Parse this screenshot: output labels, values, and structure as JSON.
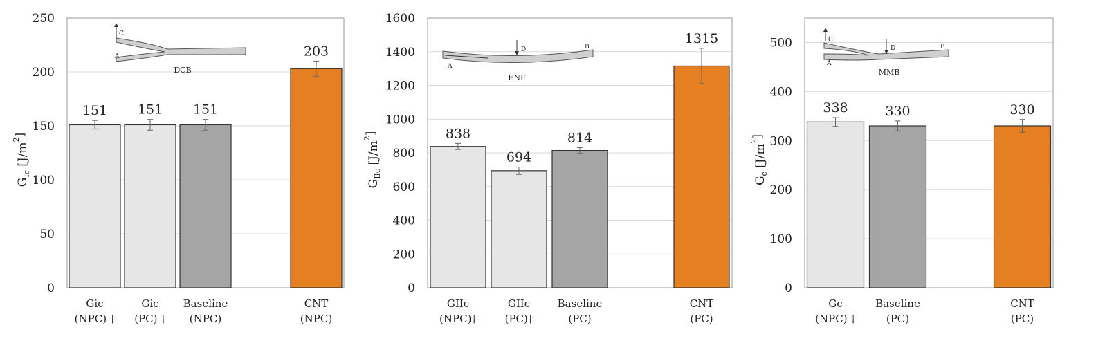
{
  "colors": {
    "light_bar": "#e6e6e6",
    "mid_bar": "#a5a5a5",
    "accent_bar": "#e67e22",
    "grid": "#d9d9d9",
    "axis": "#999999",
    "error_bar": "#666666"
  },
  "chart_data": [
    {
      "type": "bar",
      "ylabel_main": "G",
      "ylabel_sub": "Ic",
      "ylabel_unit": " [J/m",
      "ylabel_sup": "2",
      "ylabel_end": "]",
      "ylim": [
        0,
        250
      ],
      "yticks": [
        "0",
        "50",
        "100",
        "150",
        "200",
        "250"
      ],
      "grid": true,
      "inset": {
        "label": "DCB",
        "points": [
          "A",
          "C"
        ]
      },
      "bars": [
        {
          "category": [
            "Gic",
            "(NPC) †"
          ],
          "value": 151,
          "label": "151",
          "error": 4,
          "color": "light"
        },
        {
          "category": [
            "Gic",
            "(PC) †"
          ],
          "value": 151,
          "label": "151",
          "error": 5,
          "color": "light"
        },
        {
          "category": [
            "Baseline",
            "(NPC)"
          ],
          "value": 151,
          "label": "151",
          "error": 5,
          "color": "mid"
        },
        {
          "category": [
            "",
            ""
          ],
          "value": null,
          "label": "",
          "error": 0,
          "color": "none"
        },
        {
          "category": [
            "CNT",
            "(NPC)"
          ],
          "value": 203,
          "label": "203",
          "error": 7,
          "color": "accent"
        }
      ]
    },
    {
      "type": "bar",
      "ylabel_main": "G",
      "ylabel_sub": "IIc",
      "ylabel_unit": " [J/m",
      "ylabel_sup": "2",
      "ylabel_end": "]",
      "ylim": [
        0,
        1600
      ],
      "yticks": [
        "0",
        "200",
        "400",
        "600",
        "800",
        "1000",
        "1200",
        "1400",
        "1600"
      ],
      "grid": true,
      "inset": {
        "label": "ENF",
        "points": [
          "A",
          "B",
          "D"
        ]
      },
      "bars": [
        {
          "category": [
            "GIIc",
            "(NPC)†"
          ],
          "value": 838,
          "label": "838",
          "error": 18,
          "color": "light"
        },
        {
          "category": [
            "GIIc",
            "(PC)†"
          ],
          "value": 694,
          "label": "694",
          "error": 22,
          "color": "light"
        },
        {
          "category": [
            "Baseline",
            "(PC)"
          ],
          "value": 814,
          "label": "814",
          "error": 17,
          "color": "mid"
        },
        {
          "category": [
            "",
            ""
          ],
          "value": null,
          "label": "",
          "error": 0,
          "color": "none"
        },
        {
          "category": [
            "CNT",
            "(PC)"
          ],
          "value": 1315,
          "label": "1315",
          "error": 105,
          "color": "accent"
        }
      ]
    },
    {
      "type": "bar",
      "ylabel_main": "G",
      "ylabel_sub": "c",
      "ylabel_unit": " [J/m",
      "ylabel_sup": "2",
      "ylabel_end": "]",
      "ylim": [
        0,
        550
      ],
      "yticks": [
        "0",
        "100",
        "200",
        "300",
        "400",
        "500"
      ],
      "grid": true,
      "inset": {
        "label": "MMB",
        "points": [
          "A",
          "B",
          "C",
          "D"
        ]
      },
      "bars": [
        {
          "category": [
            "Gc",
            "(NPC) †"
          ],
          "value": 338,
          "label": "338",
          "error": 9,
          "color": "light"
        },
        {
          "category": [
            "Baseline",
            "(PC)"
          ],
          "value": 330,
          "label": "330",
          "error": 10,
          "color": "mid"
        },
        {
          "category": [
            "",
            ""
          ],
          "value": null,
          "label": "",
          "error": 0,
          "color": "none"
        },
        {
          "category": [
            "CNT",
            "(PC)"
          ],
          "value": 330,
          "label": "330",
          "error": 13,
          "color": "accent"
        }
      ]
    }
  ]
}
